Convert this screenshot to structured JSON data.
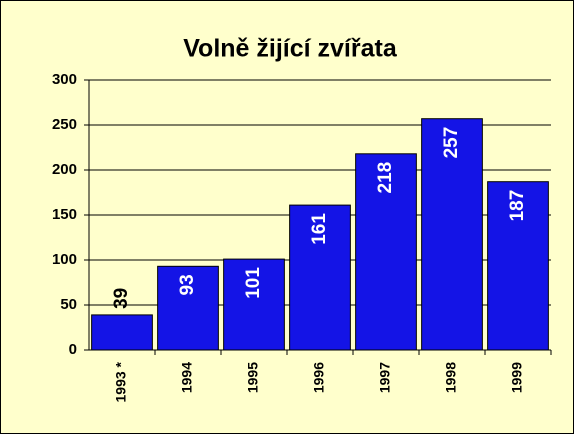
{
  "chart_data": {
    "type": "bar",
    "title": "Volně žijící zvířata",
    "categories": [
      "1993 *",
      "1994",
      "1995",
      "1996",
      "1997",
      "1998",
      "1999"
    ],
    "values": [
      39,
      93,
      101,
      161,
      218,
      257,
      187
    ],
    "color": "#1414e6",
    "ylim": [
      0,
      300
    ],
    "yticks": [
      0,
      50,
      100,
      150,
      200,
      250,
      300
    ],
    "grid": true
  }
}
